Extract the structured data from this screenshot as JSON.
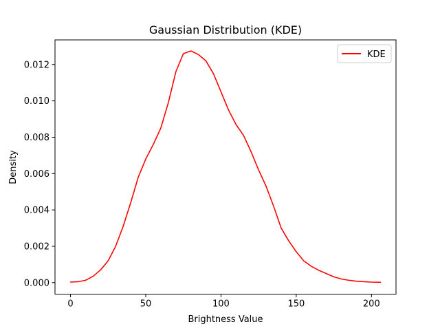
{
  "chart_data": {
    "type": "line",
    "title": "Gaussian Distribution (KDE)",
    "xlabel": "Brightness Value",
    "ylabel": "Density",
    "xlim": [
      -10.3,
      216.3
    ],
    "ylim": [
      -0.000636,
      0.013356
    ],
    "xticks": [
      0,
      50,
      100,
      150,
      200
    ],
    "xtick_labels": [
      "0",
      "50",
      "100",
      "150",
      "200"
    ],
    "yticks": [
      0.0,
      0.002,
      0.004,
      0.006,
      0.008,
      0.01,
      0.012
    ],
    "ytick_labels": [
      "0.000",
      "0.002",
      "0.004",
      "0.006",
      "0.008",
      "0.010",
      "0.012"
    ],
    "grid": false,
    "legend_position": "upper right",
    "series": [
      {
        "name": "KDE",
        "color": "#ff0000",
        "x": [
          0,
          5,
          10,
          15,
          20,
          25,
          30,
          35,
          40,
          45,
          50,
          55,
          60,
          65,
          70,
          75,
          80,
          85,
          90,
          95,
          100,
          105,
          110,
          115,
          120,
          125,
          130,
          135,
          140,
          145,
          150,
          155,
          160,
          165,
          170,
          175,
          180,
          185,
          190,
          195,
          200,
          206
        ],
        "y": [
          3e-05,
          5e-05,
          0.00013,
          0.00035,
          0.0007,
          0.0012,
          0.002,
          0.0031,
          0.0044,
          0.0058,
          0.0068,
          0.0076,
          0.0085,
          0.0099,
          0.0116,
          0.0126,
          0.01275,
          0.01255,
          0.0122,
          0.0115,
          0.0105,
          0.0095,
          0.0087,
          0.0081,
          0.0072,
          0.0062,
          0.0053,
          0.0042,
          0.003,
          0.0023,
          0.0017,
          0.0012,
          0.0009,
          0.00068,
          0.0005,
          0.00032,
          0.0002,
          0.00013,
          8e-05,
          5e-05,
          3e-05,
          2e-05
        ]
      }
    ]
  }
}
